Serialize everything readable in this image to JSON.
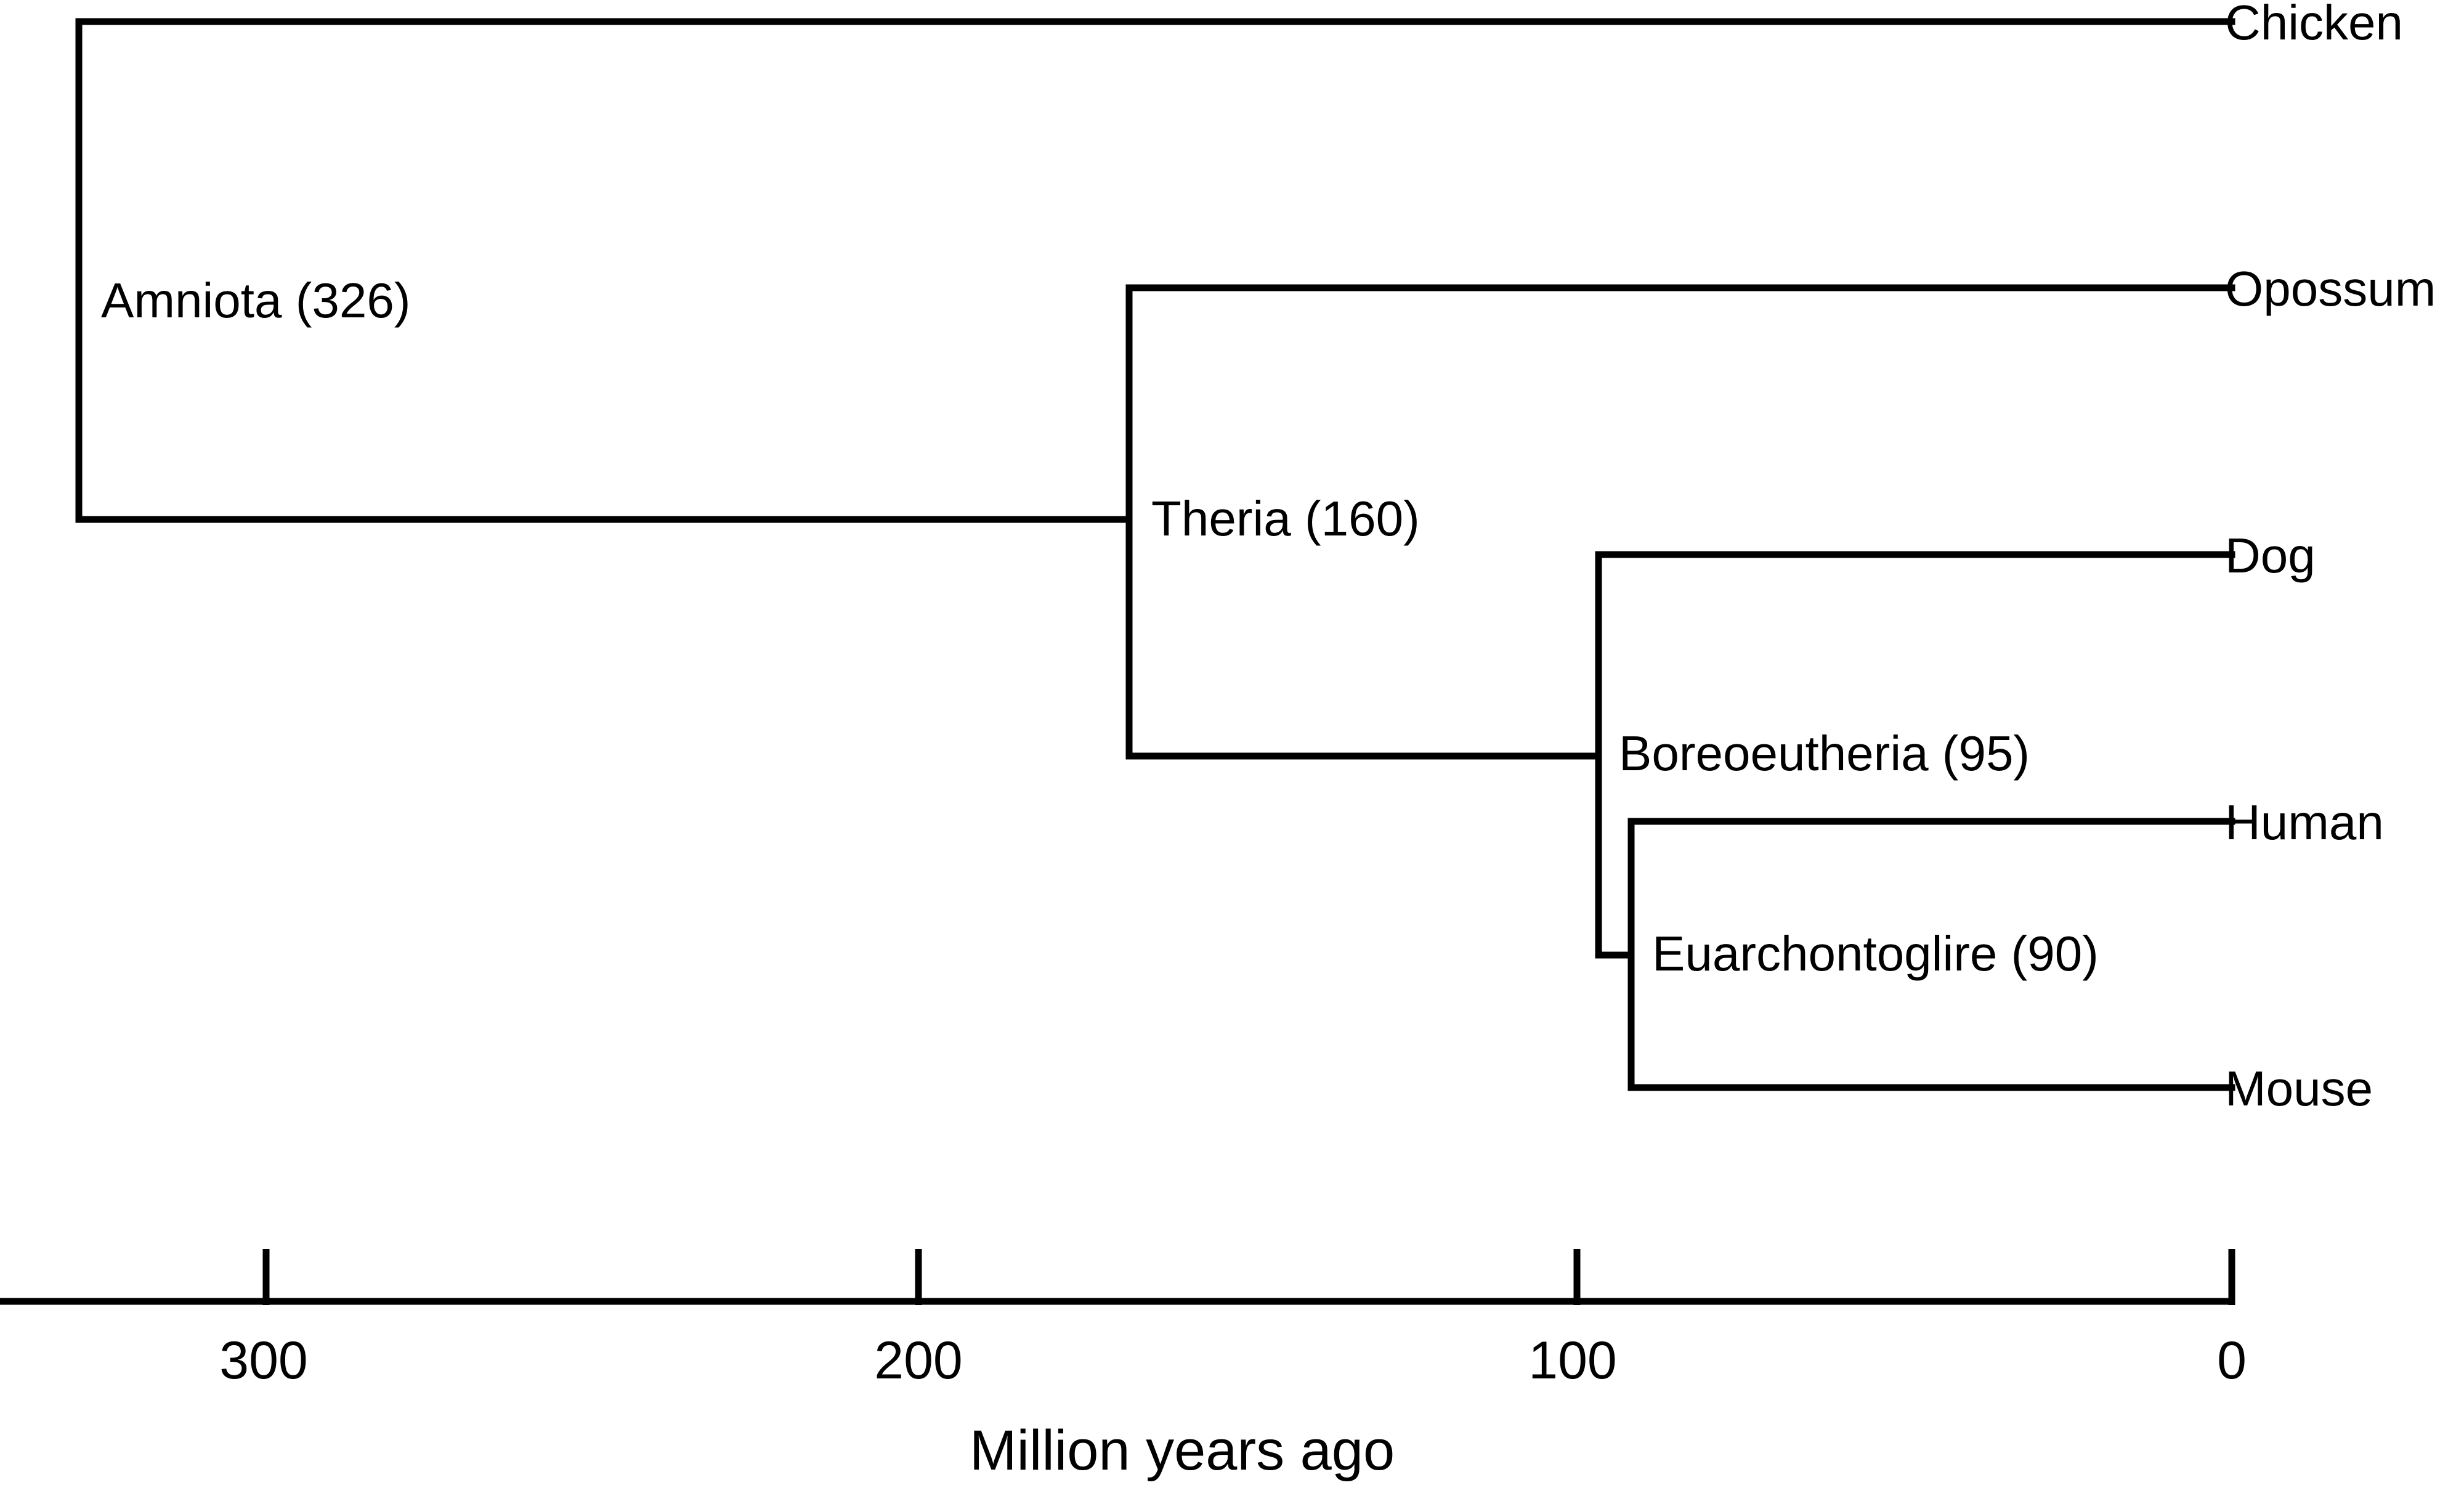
{
  "leaves": [
    {
      "id": "chicken",
      "label": "Chicken"
    },
    {
      "id": "opossum",
      "label": "Opossum"
    },
    {
      "id": "dog",
      "label": "Dog"
    },
    {
      "id": "human",
      "label": "Human"
    },
    {
      "id": "mouse",
      "label": "Mouse"
    }
  ],
  "nodes": [
    {
      "id": "amniota",
      "label": "Amniota (326)",
      "age_mya": 326
    },
    {
      "id": "theria",
      "label": "Theria (160)",
      "age_mya": 160
    },
    {
      "id": "boreoeutheria",
      "label": "Boreoeutheria (95)",
      "age_mya": 95
    },
    {
      "id": "euarchontoglire",
      "label": "Euarchontoglire (90)",
      "age_mya": 90
    }
  ],
  "axis": {
    "title": "Million years ago",
    "ticks": [
      "300",
      "200",
      "100",
      "0"
    ],
    "tick_values": [
      300,
      200,
      100,
      0
    ]
  }
}
